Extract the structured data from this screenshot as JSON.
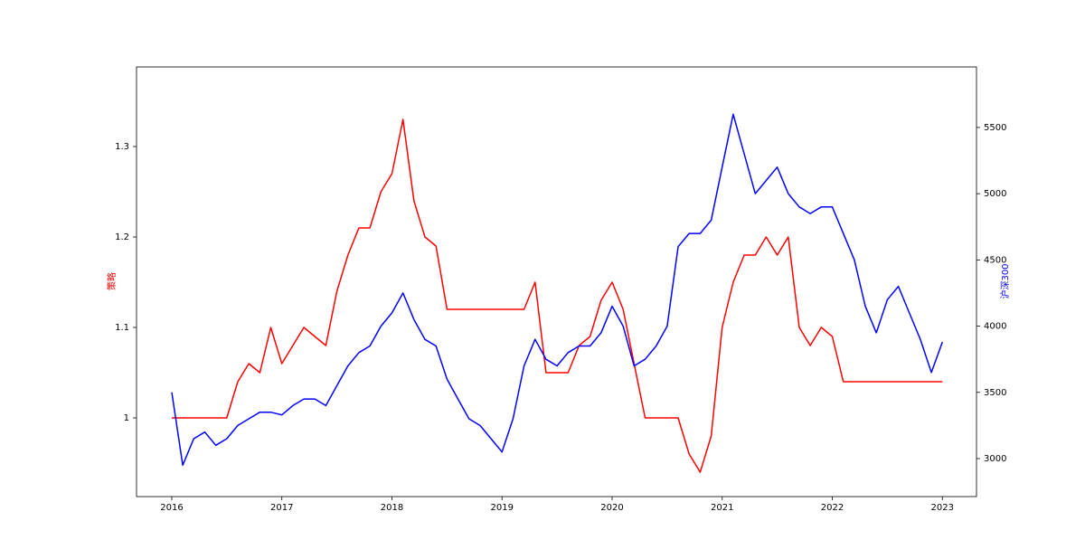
{
  "chart_data": {
    "type": "line",
    "ylabel": "策略",
    "y2label": "沪深300",
    "x": [
      2016.0,
      2016.1,
      2016.2,
      2016.3,
      2016.4,
      2016.5,
      2016.6,
      2016.7,
      2016.8,
      2016.9,
      2017.0,
      2017.1,
      2017.2,
      2017.3,
      2017.4,
      2017.5,
      2017.6,
      2017.7,
      2017.8,
      2017.9,
      2018.0,
      2018.1,
      2018.2,
      2018.3,
      2018.4,
      2018.5,
      2018.6,
      2018.7,
      2018.8,
      2018.9,
      2019.0,
      2019.1,
      2019.2,
      2019.3,
      2019.4,
      2019.5,
      2019.6,
      2019.7,
      2019.8,
      2019.9,
      2020.0,
      2020.1,
      2020.2,
      2020.3,
      2020.4,
      2020.5,
      2020.6,
      2020.7,
      2020.8,
      2020.9,
      2021.0,
      2021.1,
      2021.2,
      2021.3,
      2021.4,
      2021.5,
      2021.6,
      2021.7,
      2021.8,
      2021.9,
      2022.0,
      2022.1,
      2022.2,
      2022.3,
      2022.4,
      2022.5,
      2022.6,
      2022.7,
      2022.8,
      2022.9,
      2023.0
    ],
    "series": [
      {
        "name": "策略",
        "color": "#ff0000",
        "axis": "y",
        "values": [
          1.0,
          1.0,
          1.0,
          1.0,
          1.0,
          1.0,
          1.04,
          1.06,
          1.05,
          1.1,
          1.06,
          1.08,
          1.1,
          1.09,
          1.08,
          1.14,
          1.18,
          1.21,
          1.21,
          1.25,
          1.27,
          1.33,
          1.24,
          1.2,
          1.19,
          1.12,
          1.12,
          1.12,
          1.12,
          1.12,
          1.12,
          1.12,
          1.12,
          1.15,
          1.05,
          1.05,
          1.05,
          1.08,
          1.09,
          1.13,
          1.15,
          1.12,
          1.06,
          1.0,
          1.0,
          1.0,
          1.0,
          0.96,
          0.94,
          0.98,
          1.1,
          1.15,
          1.18,
          1.18,
          1.2,
          1.18,
          1.2,
          1.1,
          1.08,
          1.1,
          1.09,
          1.04,
          1.04,
          1.04,
          1.04,
          1.04,
          1.04,
          1.04,
          1.04,
          1.04,
          1.04
        ]
      },
      {
        "name": "沪深300",
        "color": "#0000ff",
        "axis": "y2",
        "values": [
          3500,
          2950,
          3150,
          3200,
          3100,
          3150,
          3250,
          3300,
          3350,
          3350,
          3330,
          3400,
          3450,
          3450,
          3400,
          3550,
          3700,
          3800,
          3850,
          4000,
          4100,
          4250,
          4050,
          3900,
          3850,
          3600,
          3450,
          3300,
          3250,
          3150,
          3050,
          3300,
          3700,
          3900,
          3750,
          3700,
          3800,
          3850,
          3850,
          3950,
          4150,
          4000,
          3700,
          3750,
          3850,
          4000,
          4600,
          4700,
          4700,
          4800,
          5200,
          5600,
          5300,
          5000,
          5100,
          5200,
          5000,
          4900,
          4850,
          4900,
          4900,
          4700,
          4500,
          4150,
          3950,
          4200,
          4300,
          4100,
          3900,
          3650,
          3880
        ]
      }
    ],
    "xlim": [
      2015.68,
      2023.31
    ],
    "xticks": [
      2016,
      2017,
      2018,
      2019,
      2020,
      2021,
      2022,
      2023
    ],
    "ylim": [
      0.913,
      1.388
    ],
    "yticks": [
      1.0,
      1.1,
      1.2,
      1.3
    ],
    "y2lim": [
      2713,
      5957
    ],
    "y2ticks": [
      3000,
      3500,
      4000,
      4500,
      5000,
      5500
    ],
    "grid": false
  }
}
